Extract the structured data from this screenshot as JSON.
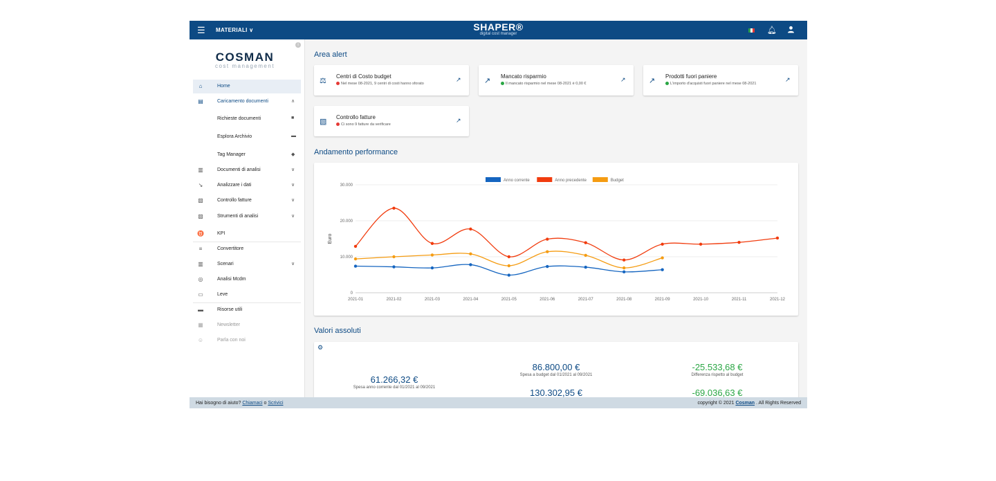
{
  "topbar": {
    "menu_label": "MATERIALI",
    "brand_name": "SHAPER®",
    "brand_tagline": "digital cost manager"
  },
  "sidebar": {
    "logo_name": "COSMAN",
    "logo_tagline": "cost management",
    "items": [
      {
        "label": "Home",
        "icon": "home-icon"
      },
      {
        "label": "Caricamento documenti",
        "icon": "archive-icon"
      },
      {
        "label": "Richieste documenti",
        "icon": "document-icon"
      },
      {
        "label": "Esplora Archivio",
        "icon": "folder-icon"
      },
      {
        "label": "Tag Manager",
        "icon": "tag-icon"
      },
      {
        "label": "Documenti di analisi",
        "icon": "library-icon"
      },
      {
        "label": "Analizzare i dati",
        "icon": "chart-icon"
      },
      {
        "label": "Controllo fatture",
        "icon": "invoice-icon"
      },
      {
        "label": "Strumenti di analisi",
        "icon": "invoice-icon"
      },
      {
        "label": "KPI",
        "icon": "kpi-icon"
      },
      {
        "label": "Convertitore",
        "icon": "convert-icon"
      },
      {
        "label": "Scenari",
        "icon": "library-icon"
      },
      {
        "label": "Analisi Mcdm",
        "icon": "analysis-icon"
      },
      {
        "label": "Leve",
        "icon": "money-icon"
      },
      {
        "label": "Risorse utili",
        "icon": "folder-icon"
      },
      {
        "label": "Newsletter",
        "icon": "newsletter-icon"
      },
      {
        "label": "Parla con noi",
        "icon": "support-icon"
      }
    ]
  },
  "alerts": {
    "title": "Area alert",
    "cards": [
      {
        "title": "Centri di Costo budget",
        "desc": "Nel mese 08-2021, 9 centri di costi hanno sforato",
        "status_color": "#e53935"
      },
      {
        "title": "Mancato risparmio",
        "desc": "Il mancato risparmio nel mese 08-2021 è 0,00 €",
        "status_color": "#2aa644"
      },
      {
        "title": "Prodotti fuori paniere",
        "desc": "L'importo d'acquisti fuori paniere nel mese 08-2021",
        "status_color": "#2aa644"
      },
      {
        "title": "Controllo fatture",
        "desc": "Ci sono 9 fatture da verificare",
        "status_color": "#e53935"
      }
    ]
  },
  "performance": {
    "title": "Andamento performance"
  },
  "chart_data": {
    "type": "line",
    "categories": [
      "2021-01",
      "2021-02",
      "2021-03",
      "2021-04",
      "2021-05",
      "2021-06",
      "2021-07",
      "2021-08",
      "2021-09",
      "2021-10",
      "2021-11",
      "2021-12"
    ],
    "ylabel": "Euro",
    "ylim": [
      0,
      30000
    ],
    "yticks": [
      "0",
      "10.000",
      "20.000",
      "30.000"
    ],
    "grid": true,
    "legend_position": "top",
    "series": [
      {
        "name": "Anno corrente",
        "color": "#1565c0",
        "values": [
          7400,
          7200,
          6900,
          7800,
          4900,
          7300,
          7100,
          5800,
          6400,
          null,
          null,
          null
        ]
      },
      {
        "name": "Anno precedente",
        "color": "#f13c0e",
        "values": [
          12900,
          23500,
          13700,
          17700,
          10000,
          14900,
          13900,
          9100,
          13500,
          13500,
          14000,
          15200
        ]
      },
      {
        "name": "Budget",
        "color": "#f59c12",
        "values": [
          9400,
          10000,
          10500,
          10800,
          7500,
          11400,
          10400,
          6900,
          9700,
          null,
          null,
          null
        ]
      }
    ]
  },
  "absolute": {
    "title": "Valori assoluti",
    "values": [
      {
        "amount": "61.266,32 €",
        "label": "Spesa anno corrente dal 01/2021 al 09/2021"
      },
      {
        "amount": "86.800,00 €",
        "label": "Spesa a budget dal 01/2021 al 09/2021"
      },
      {
        "amount": "-25.533,68 €",
        "label": "Differenza rispetto al budget"
      },
      {
        "amount": "130.302,95 €",
        "label": ""
      },
      {
        "amount": "-69.036,63 €",
        "label": ""
      }
    ]
  },
  "footer": {
    "help_text": "Hai bisogno di aiuto?",
    "call_link": "Chiamaci",
    "or_text": "o",
    "write_link": "Scrivici",
    "copyright": "copyright © 2021",
    "company_link": "Cosman",
    "rights": ". All Rights Reserved"
  }
}
